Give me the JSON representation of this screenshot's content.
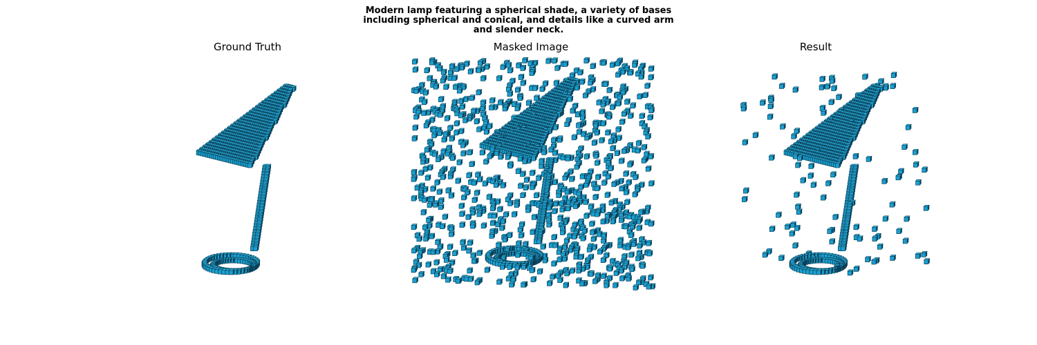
{
  "figure": {
    "suptitle_lines": [
      "Modern lamp featuring a spherical shade, a variety of bases",
      "including spherical and conical, and details like a curved arm",
      "and slender neck."
    ]
  },
  "panels": [
    {
      "title": "Ground Truth"
    },
    {
      "title": "Masked Image"
    },
    {
      "title": "Result"
    }
  ],
  "colors": {
    "voxel_face": "#1aa0d0",
    "voxel_top": "#2bb8e6",
    "voxel_edge": "#0b3f57"
  }
}
